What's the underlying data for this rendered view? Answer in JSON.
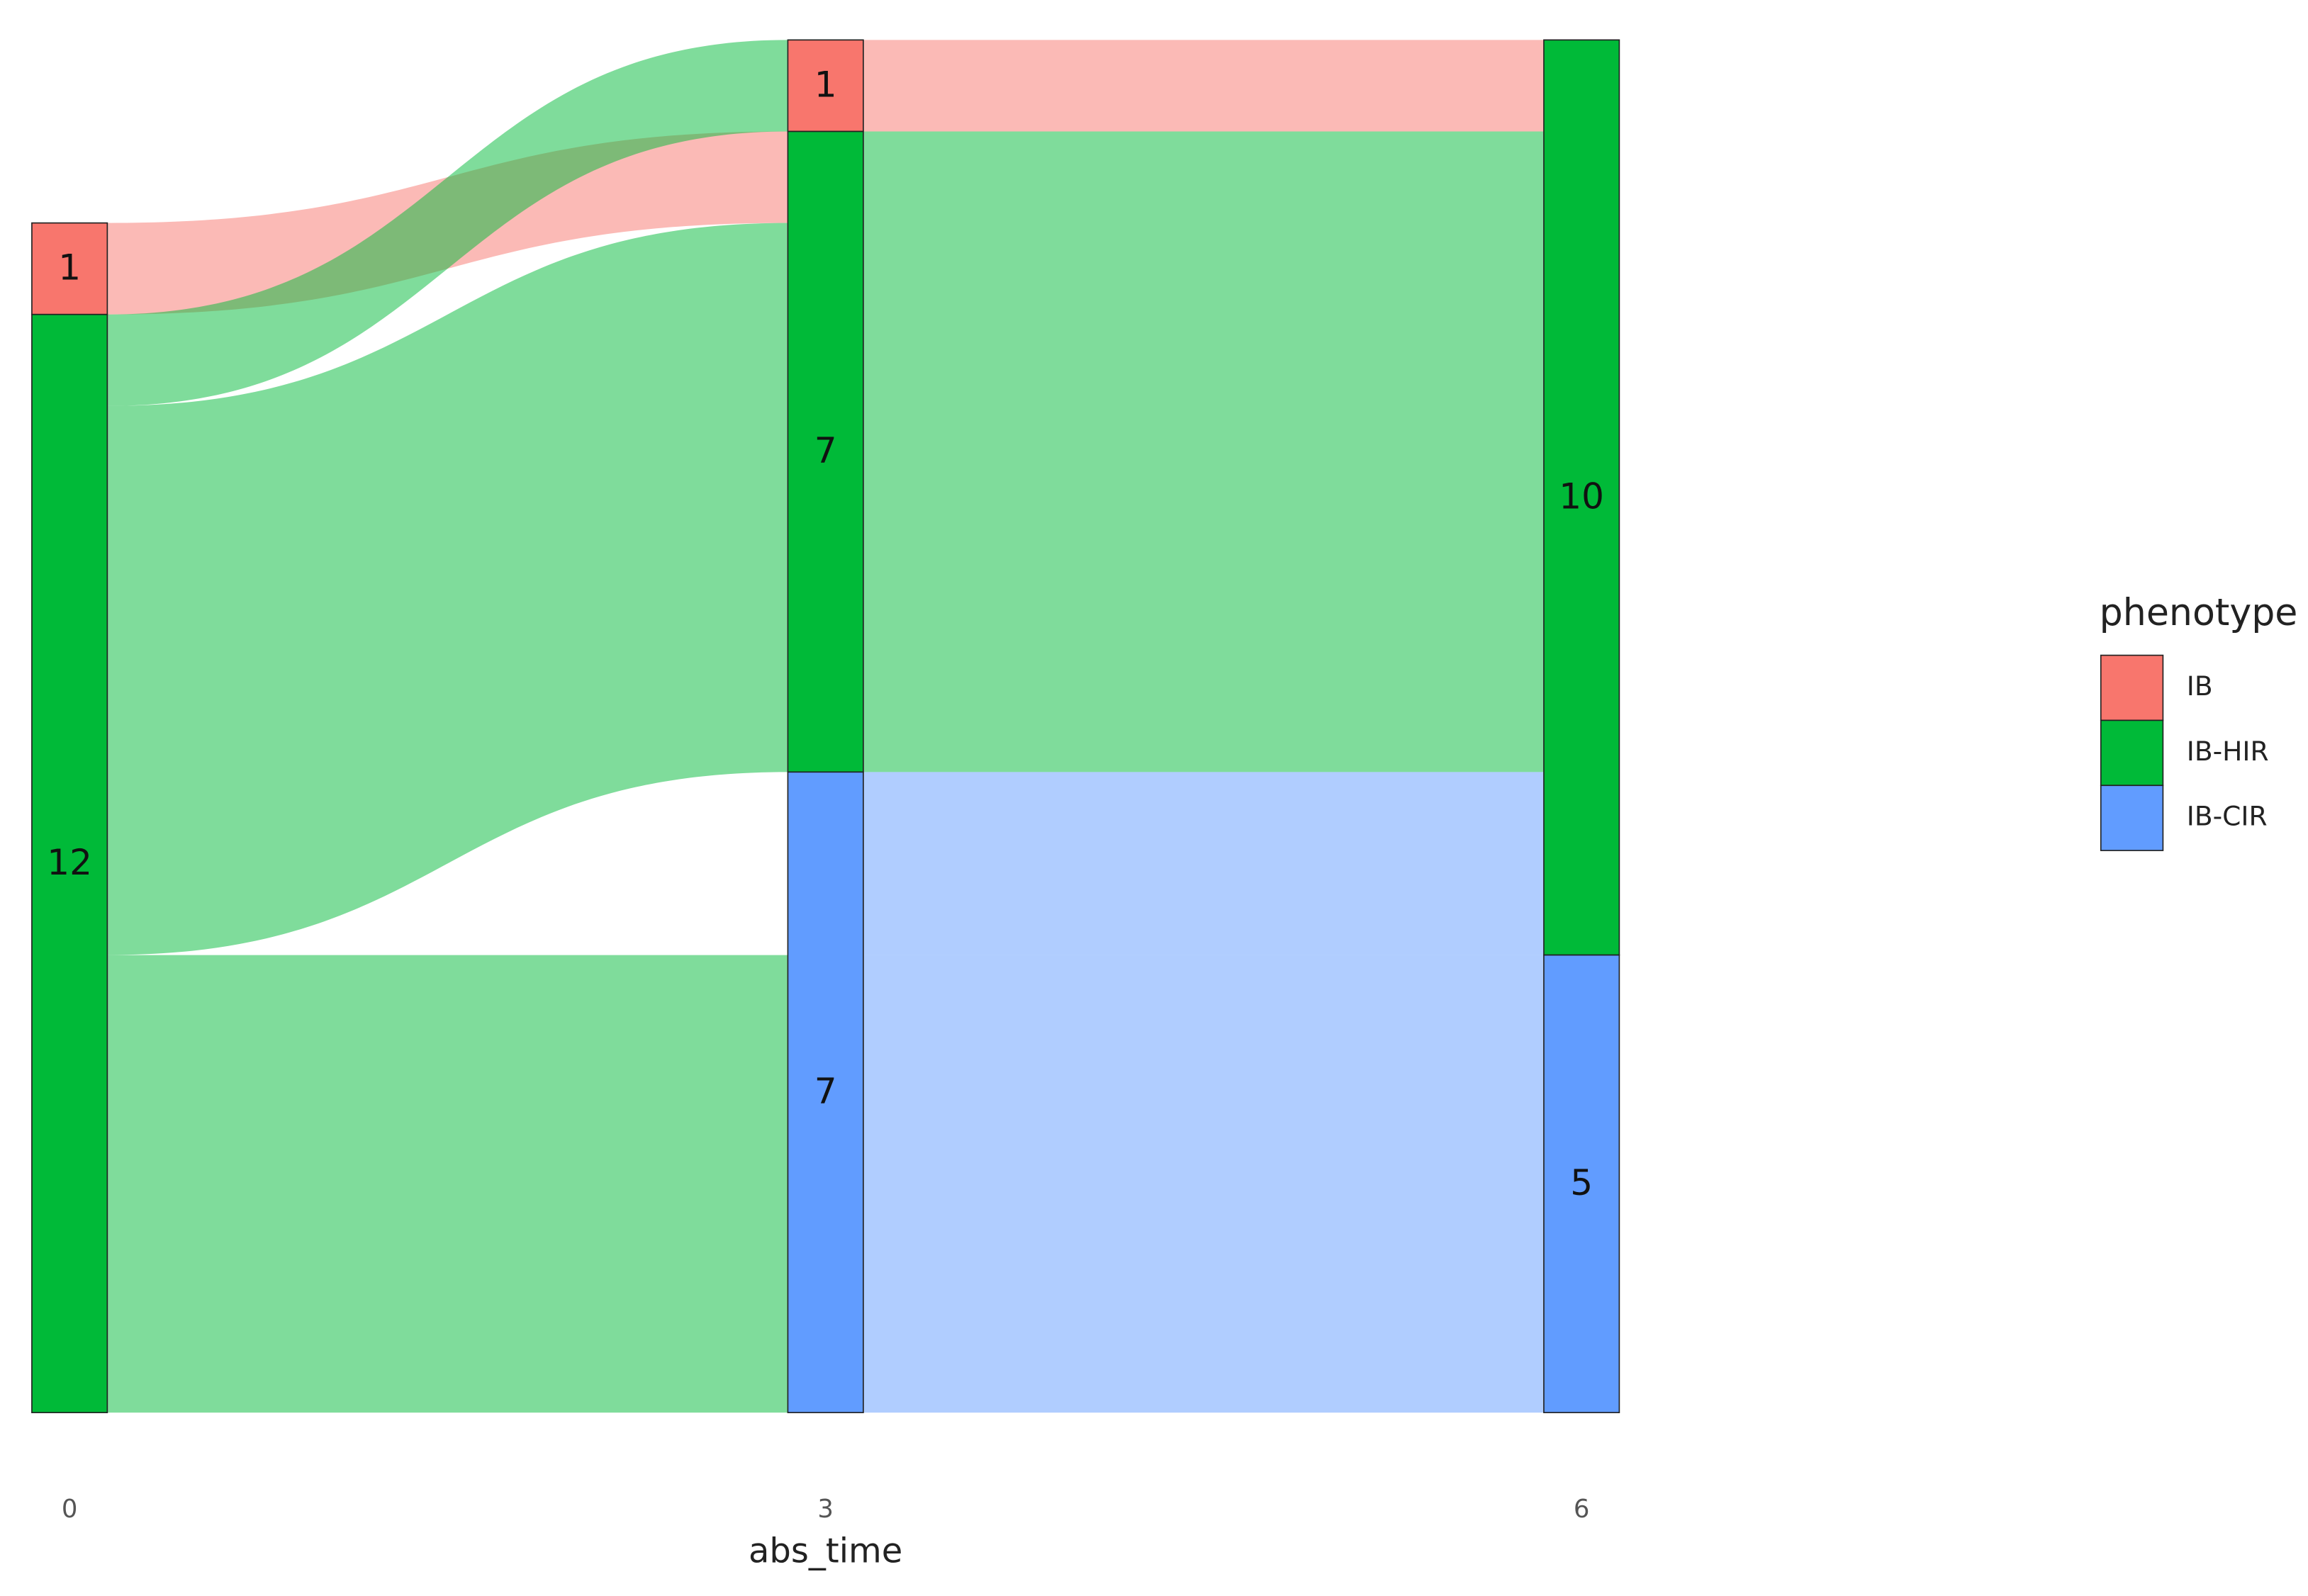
{
  "chart_data": {
    "type": "alluvial",
    "x": [
      0,
      3,
      6
    ],
    "x_label": "abs_time",
    "legend_title": "phenotype",
    "legend_position": "right",
    "series": [
      {
        "name": "IB",
        "color": "#F8766D",
        "values": [
          1,
          1,
          null
        ]
      },
      {
        "name": "IB-HIR",
        "color": "#00BA38",
        "values": [
          12,
          7,
          10
        ]
      },
      {
        "name": "IB-CIR",
        "color": "#619CFF",
        "values": [
          null,
          7,
          5
        ]
      }
    ],
    "flows": [
      {
        "stage": 0,
        "from": "IB",
        "to": "IB-HIR",
        "value": 1
      },
      {
        "stage": 0,
        "from": "IB-HIR",
        "to": "IB",
        "value": 1
      },
      {
        "stage": 0,
        "from": "IB-HIR",
        "to": "IB-HIR",
        "value": 6
      },
      {
        "stage": 0,
        "from": "IB-HIR",
        "to": "IB-CIR",
        "value": 5
      },
      {
        "stage": 3,
        "from": "IB",
        "to": "IB-HIR",
        "value": 1
      },
      {
        "stage": 3,
        "from": "IB-HIR",
        "to": "IB-HIR",
        "value": 7
      },
      {
        "stage": 3,
        "from": "IB-CIR",
        "to": "IB-HIR",
        "value": 2
      },
      {
        "stage": 3,
        "from": "IB-CIR",
        "to": "IB-CIR",
        "value": 5
      }
    ]
  }
}
